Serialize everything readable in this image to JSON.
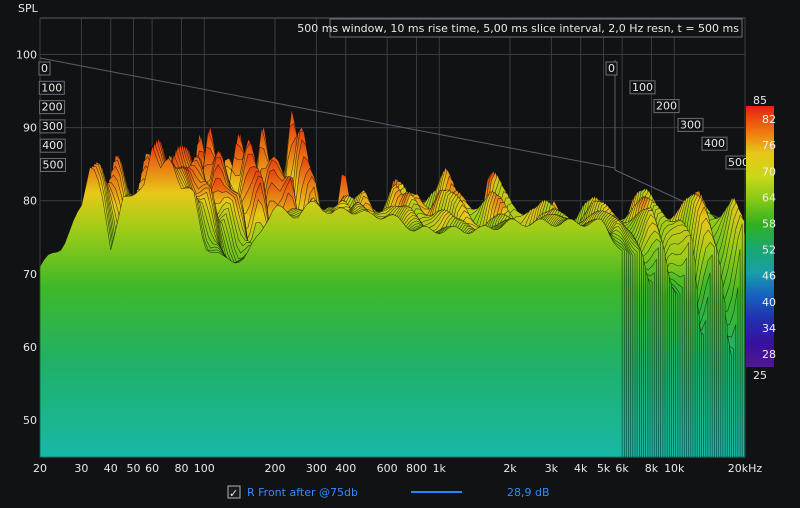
{
  "chart_data": {
    "type": "waterfall",
    "y_axis_title": "SPL",
    "info_text": "500 ms window, 10 ms rise time, 5,00 ms slice interval, 2,0 Hz resn, t = 500 ms",
    "y_ticks": [
      "100",
      "90",
      "80",
      "70",
      "60",
      "50"
    ],
    "y_tick_values": [
      100,
      90,
      80,
      70,
      60,
      50
    ],
    "x_ticks": [
      {
        "label": "20",
        "hz": 20
      },
      {
        "label": "30",
        "hz": 30
      },
      {
        "label": "40",
        "hz": 40
      },
      {
        "label": "50",
        "hz": 50
      },
      {
        "label": "60",
        "hz": 60
      },
      {
        "label": "80",
        "hz": 80
      },
      {
        "label": "100",
        "hz": 100
      },
      {
        "label": "200",
        "hz": 200
      },
      {
        "label": "300",
        "hz": 300
      },
      {
        "label": "400",
        "hz": 400
      },
      {
        "label": "600",
        "hz": 600
      },
      {
        "label": "800",
        "hz": 800
      },
      {
        "label": "1k",
        "hz": 1000
      },
      {
        "label": "2k",
        "hz": 2000
      },
      {
        "label": "3k",
        "hz": 3000
      },
      {
        "label": "4k",
        "hz": 4000
      },
      {
        "label": "5k",
        "hz": 5000
      },
      {
        "label": "6k",
        "hz": 6000
      },
      {
        "label": "8k",
        "hz": 8000
      },
      {
        "label": "10k",
        "hz": 10000
      },
      {
        "label": "20kHz",
        "hz": 20000
      }
    ],
    "time_ticks": [
      "0",
      "100",
      "200",
      "300",
      "400",
      "500"
    ],
    "time_values_ms": [
      0,
      100,
      200,
      300,
      400,
      500
    ],
    "colorbar_min": "25",
    "colorbar_max": "85",
    "colorbar_ticks": [
      "82",
      "76",
      "70",
      "64",
      "58",
      "52",
      "46",
      "40",
      "34",
      "28"
    ],
    "colorbar_tick_values": [
      82,
      76,
      70,
      64,
      58,
      52,
      46,
      40,
      34,
      28
    ],
    "colorbar_colors": [
      "#e82010",
      "#f07010",
      "#e8c818",
      "#c8d818",
      "#80c818",
      "#30b020",
      "#18a870",
      "#18a0a8",
      "#1860c0",
      "#2030b0",
      "#3810a0",
      "#501890"
    ],
    "legend": {
      "series_name": "R Front after @75db",
      "series_color": "#1e88ff",
      "value": "28,9 dB",
      "checked": true
    },
    "front_profile": [
      {
        "hz": 20,
        "db": 71
      },
      {
        "hz": 25,
        "db": 74
      },
      {
        "hz": 30,
        "db": 79
      },
      {
        "hz": 33,
        "db": 86
      },
      {
        "hz": 36,
        "db": 82
      },
      {
        "hz": 40,
        "db": 73
      },
      {
        "hz": 45,
        "db": 81
      },
      {
        "hz": 50,
        "db": 80
      },
      {
        "hz": 55,
        "db": 82
      },
      {
        "hz": 60,
        "db": 88
      },
      {
        "hz": 65,
        "db": 84
      },
      {
        "hz": 72,
        "db": 86
      },
      {
        "hz": 80,
        "db": 82
      },
      {
        "hz": 90,
        "db": 81
      },
      {
        "hz": 100,
        "db": 74
      },
      {
        "hz": 120,
        "db": 72
      },
      {
        "hz": 150,
        "db": 72
      },
      {
        "hz": 180,
        "db": 77
      },
      {
        "hz": 200,
        "db": 79
      },
      {
        "hz": 250,
        "db": 78
      },
      {
        "hz": 300,
        "db": 80
      },
      {
        "hz": 350,
        "db": 78
      },
      {
        "hz": 400,
        "db": 79
      },
      {
        "hz": 500,
        "db": 78
      },
      {
        "hz": 600,
        "db": 78
      },
      {
        "hz": 700,
        "db": 77
      },
      {
        "hz": 800,
        "db": 76
      },
      {
        "hz": 1000,
        "db": 76
      },
      {
        "hz": 1500,
        "db": 76
      },
      {
        "hz": 2000,
        "db": 77
      },
      {
        "hz": 3000,
        "db": 77
      },
      {
        "hz": 4000,
        "db": 77
      },
      {
        "hz": 5000,
        "db": 77
      },
      {
        "hz": 6000,
        "db": 73
      }
    ]
  }
}
